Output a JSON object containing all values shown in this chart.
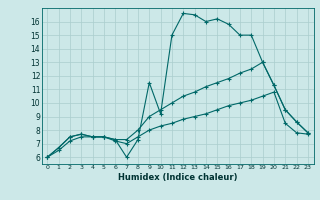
{
  "xlabel": "Humidex (Indice chaleur)",
  "bg_color": "#cce8e8",
  "grid_color": "#aacece",
  "line_color": "#006868",
  "xlim": [
    -0.5,
    23.5
  ],
  "ylim": [
    5.5,
    17.0
  ],
  "xticks": [
    0,
    1,
    2,
    3,
    4,
    5,
    6,
    7,
    8,
    9,
    10,
    11,
    12,
    13,
    14,
    15,
    16,
    17,
    18,
    19,
    20,
    21,
    22,
    23
  ],
  "yticks": [
    6,
    7,
    8,
    9,
    10,
    11,
    12,
    13,
    14,
    15,
    16
  ],
  "line1_x": [
    0,
    1,
    2,
    3,
    4,
    5,
    6,
    7,
    8,
    9,
    10,
    11,
    12,
    13,
    14,
    15,
    16,
    17,
    18,
    19,
    20,
    21,
    22,
    23
  ],
  "line1_y": [
    6.0,
    6.7,
    7.5,
    7.7,
    7.5,
    7.5,
    7.3,
    6.0,
    7.3,
    11.5,
    9.2,
    15.0,
    16.6,
    16.5,
    16.0,
    16.2,
    15.8,
    15.0,
    15.0,
    13.0,
    11.3,
    9.5,
    8.6,
    7.8
  ],
  "line2_x": [
    0,
    1,
    2,
    3,
    4,
    5,
    6,
    7,
    8,
    9,
    10,
    11,
    12,
    13,
    14,
    15,
    16,
    17,
    18,
    19,
    20,
    21,
    22,
    23
  ],
  "line2_y": [
    6.0,
    6.7,
    7.5,
    7.7,
    7.5,
    7.5,
    7.3,
    7.3,
    8.0,
    9.0,
    9.5,
    10.0,
    10.5,
    10.8,
    11.2,
    11.5,
    11.8,
    12.2,
    12.5,
    13.0,
    11.3,
    9.5,
    8.6,
    7.8
  ],
  "line3_x": [
    0,
    1,
    2,
    3,
    4,
    5,
    6,
    7,
    8,
    9,
    10,
    11,
    12,
    13,
    14,
    15,
    16,
    17,
    18,
    19,
    20,
    21,
    22,
    23
  ],
  "line3_y": [
    6.0,
    6.5,
    7.2,
    7.5,
    7.5,
    7.5,
    7.2,
    7.0,
    7.5,
    8.0,
    8.3,
    8.5,
    8.8,
    9.0,
    9.2,
    9.5,
    9.8,
    10.0,
    10.2,
    10.5,
    10.8,
    8.5,
    7.8,
    7.7
  ],
  "xlabel_fontsize": 6,
  "tick_fontsize_x": 4.5,
  "tick_fontsize_y": 5.5
}
